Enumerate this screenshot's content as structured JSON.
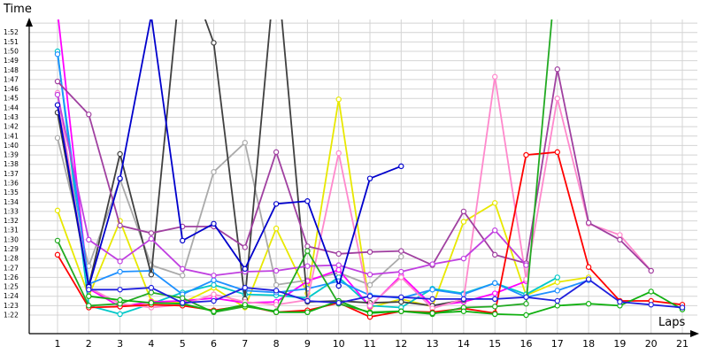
{
  "chart_data": {
    "type": "line",
    "title": "",
    "ylabel": "Time",
    "xlabel": "Laps",
    "x": [
      1,
      2,
      3,
      4,
      5,
      6,
      7,
      8,
      9,
      10,
      11,
      12,
      13,
      14,
      15,
      16,
      17,
      18,
      19,
      20,
      21
    ],
    "xlim": [
      1,
      21
    ],
    "ylim_seconds": [
      81,
      115
    ],
    "y_unit": "lap time (m:ss, ticks shown 1:22 – 1:52)",
    "yticks": [
      "1:22",
      "1:23",
      "1:24",
      "1:25",
      "1:26",
      "1:27",
      "1:28",
      "1:29",
      "1:30",
      "1:31",
      "1:32",
      "1:33",
      "1:34",
      "1:35",
      "1:36",
      "1:37",
      "1:38",
      "1:39",
      "1:40",
      "1:41",
      "1:42",
      "1:43",
      "1:44",
      "1:45",
      "1:46",
      "1:47",
      "1:48",
      "1:49",
      "1:50",
      "1:51",
      "1:52"
    ],
    "grid": true,
    "legend": "none",
    "series": [
      {
        "color": "#e8e800",
        "values": [
          93.1,
          84.0,
          92.0,
          83.5,
          83.3,
          84.9,
          82.8,
          91.2,
          84.3,
          104.9,
          82.8,
          83.7,
          82.9,
          91.9,
          93.9,
          84.1,
          85.5,
          86.0,
          null,
          null,
          null
        ]
      },
      {
        "color": "#00c8c8",
        "values": [
          110.0,
          83.0,
          82.1,
          83.2,
          84.4,
          85.2,
          84.2,
          84.1,
          83.8,
          86.0,
          83.0,
          82.8,
          84.8,
          84.3,
          85.4,
          84.2,
          86.0,
          null,
          null,
          null,
          null
        ]
      },
      {
        "color": "#aaaaaa",
        "values": [
          100.8,
          87.2,
          96.4,
          87.3,
          86.2,
          97.2,
          100.3,
          85.2,
          85.7,
          86.5,
          85.2,
          88.2,
          null,
          null,
          null,
          null,
          null,
          null,
          null,
          null,
          null
        ]
      },
      {
        "color": "#ff00ff",
        "values": [
          114.2,
          84.8,
          82.9,
          83.4,
          83.5,
          83.8,
          83.3,
          83.4,
          85.6,
          86.8,
          82.9,
          86.2,
          83.0,
          83.4,
          84.3,
          85.6,
          null,
          null,
          null,
          null,
          null
        ]
      },
      {
        "color": "#1e90ff",
        "values": [
          109.7,
          85.3,
          86.6,
          86.7,
          84.2,
          85.7,
          84.6,
          84.4,
          84.8,
          85.6,
          84.1,
          83.8,
          84.7,
          84.2,
          85.4,
          83.9,
          84.6,
          85.7,
          null,
          null,
          null
        ]
      },
      {
        "color": "#404040",
        "values": [
          103.5,
          85.1,
          99.1,
          86.3,
          120.0,
          110.9,
          83.7,
          120.0,
          83.4,
          83.5,
          83.3,
          83.4,
          83.0,
          83.6,
          null,
          null,
          null,
          null,
          null,
          null,
          null
        ]
      },
      {
        "color": "#ff88cc",
        "values": [
          105.6,
          84.9,
          83.2,
          82.8,
          83.1,
          84.2,
          83.4,
          83.1,
          83.6,
          99.2,
          83.0,
          86.0,
          82.7,
          83.7,
          107.3,
          85.8,
          105.0,
          91.7,
          90.5,
          86.7,
          null
        ]
      },
      {
        "color": "#a040a0",
        "values": [
          106.8,
          103.3,
          91.5,
          90.7,
          91.4,
          91.4,
          89.2,
          99.3,
          89.3,
          88.5,
          88.7,
          88.8,
          87.3,
          93.0,
          88.4,
          87.5,
          108.1,
          91.8,
          90.0,
          86.7,
          null
        ]
      },
      {
        "color": "#c040e0",
        "values": [
          105.4,
          90.0,
          87.7,
          90.1,
          86.9,
          86.2,
          86.6,
          86.7,
          87.2,
          87.3,
          86.3,
          86.6,
          87.4,
          88.0,
          91.0,
          87.3,
          null,
          null,
          null,
          null,
          null
        ]
      },
      {
        "color": "#0000cc",
        "values": [
          104.3,
          85.0,
          96.5,
          113.8,
          89.9,
          91.7,
          86.9,
          93.8,
          94.1,
          85.1,
          96.5,
          97.8,
          null,
          null,
          null,
          null,
          null,
          null,
          null,
          null,
          null
        ]
      },
      {
        "color": "#ff0000",
        "values": [
          88.4,
          82.8,
          82.9,
          83.1,
          83.0,
          82.5,
          83.0,
          82.3,
          82.5,
          83.3,
          81.8,
          82.4,
          82.3,
          82.7,
          82.2,
          99.0,
          99.3,
          87.1,
          83.5,
          83.5,
          83.1
        ]
      },
      {
        "color": "#22aa22",
        "values": [
          89.9,
          83.0,
          83.2,
          84.4,
          83.8,
          82.3,
          82.9,
          82.4,
          88.8,
          83.2,
          82.3,
          82.4,
          82.1,
          82.8,
          82.9,
          83.2,
          120.0,
          null,
          null,
          null,
          null
        ]
      },
      {
        "color": "#10b010",
        "values": [
          null,
          84.0,
          83.6,
          83.3,
          83.2,
          82.4,
          83.1,
          82.3,
          82.3,
          83.5,
          82.2,
          82.4,
          82.2,
          82.4,
          82.1,
          82.0,
          83.0,
          83.2,
          83.0,
          84.5,
          82.6
        ]
      },
      {
        "color": "#2020dd",
        "values": [
          null,
          84.7,
          84.7,
          84.9,
          83.3,
          83.5,
          84.9,
          84.6,
          83.5,
          83.3,
          84.0,
          83.9,
          83.7,
          83.7,
          83.7,
          83.9,
          83.5,
          85.8,
          83.4,
          83.1,
          82.8
        ]
      }
    ]
  }
}
